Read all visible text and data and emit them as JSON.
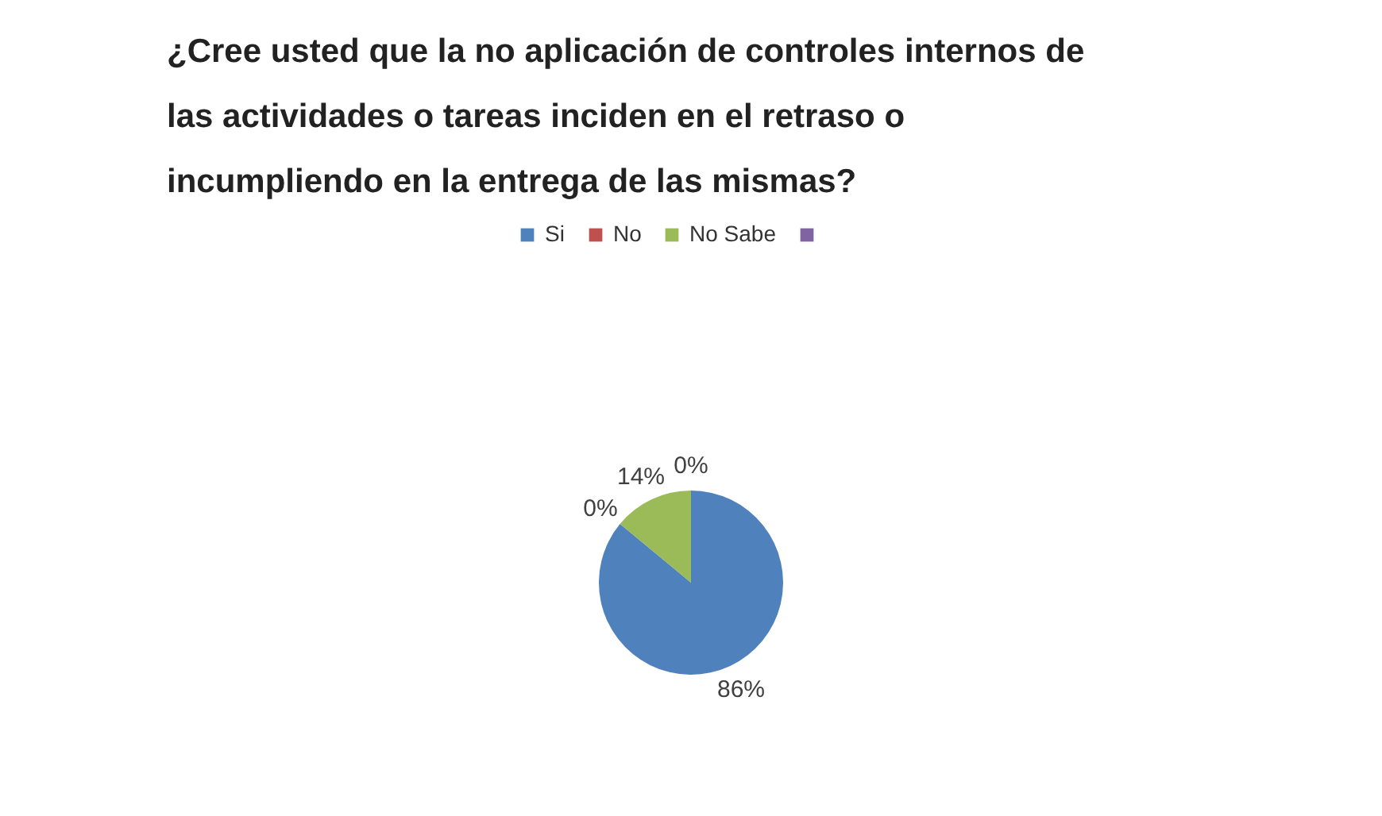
{
  "chart_data": {
    "type": "pie",
    "title": "¿Cree usted que la no aplicación de controles internos de las actividades o tareas inciden en el retraso o incumpliendo en la entrega de las mismas?",
    "categories": [
      "Si",
      "No",
      "No Sabe",
      null
    ],
    "values": [
      86,
      0,
      14,
      0
    ],
    "colors": [
      "#4f81bd",
      "#c0504d",
      "#9bbb59",
      "#8064a2"
    ],
    "value_labels": [
      "86%",
      "0%",
      "14%",
      "0%"
    ],
    "legend": "top"
  }
}
